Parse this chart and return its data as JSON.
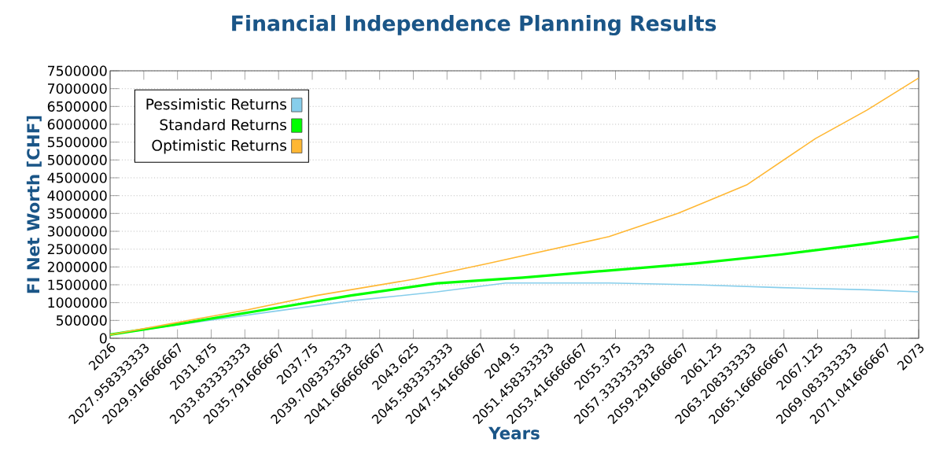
{
  "chart_data": {
    "type": "line",
    "title": "Financial Independence Planning Results",
    "xlabel": "Years",
    "ylabel": "FI Net Worth [CHF]",
    "xlim": [
      2026,
      2073
    ],
    "xticks": [
      2026,
      {
        "value": 2027.958333333,
        "label": "2027.958333333"
      },
      {
        "value": 2029.916666667,
        "label": "2029.916666667"
      },
      {
        "value": 2031.875,
        "label": "2031.875"
      },
      {
        "value": 2033.833333333,
        "label": "2033.833333333"
      },
      {
        "value": 2035.791666667,
        "label": "2035.791666667"
      },
      {
        "value": 2037.75,
        "label": "2037.75"
      },
      {
        "value": 2039.708333333,
        "label": "2039.708333333"
      },
      {
        "value": 2041.666666667,
        "label": "2041.666666667"
      },
      {
        "value": 2043.625,
        "label": "2043.625"
      },
      {
        "value": 2045.583333333,
        "label": "2045.583333333"
      },
      {
        "value": 2047.541666667,
        "label": "2047.541666667"
      },
      {
        "value": 2049.5,
        "label": "2049.5"
      },
      {
        "value": 2051.458333333,
        "label": "2051.458333333"
      },
      {
        "value": 2053.416666667,
        "label": "2053.416666667"
      },
      {
        "value": 2055.375,
        "label": "2055.375"
      },
      {
        "value": 2057.333333333,
        "label": "2057.333333333"
      },
      {
        "value": 2059.291666667,
        "label": "2059.291666667"
      },
      {
        "value": 2061.25,
        "label": "2061.25"
      },
      {
        "value": 2063.208333333,
        "label": "2063.208333333"
      },
      {
        "value": 2065.166666667,
        "label": "2065.166666667"
      },
      {
        "value": 2067.125,
        "label": "2067.125"
      },
      {
        "value": 2069.083333333,
        "label": "2069.083333333"
      },
      {
        "value": 2071.041666667,
        "label": "2071.041666667"
      },
      2073
    ],
    "ylim": [
      0,
      7500000
    ],
    "yticks": [
      0,
      500000,
      1000000,
      1500000,
      2000000,
      2500000,
      3000000,
      3500000,
      4000000,
      4500000,
      5000000,
      5500000,
      6000000,
      6500000,
      7000000,
      7500000
    ],
    "grid": "y",
    "legend": "top left",
    "marker": "none",
    "line_style": "solid",
    "series": [
      {
        "name": "Pessimistic Returns",
        "color": "#87ceeb",
        "x": [
          2026,
          2030,
          2035,
          2040,
          2045,
          2049,
          2055,
          2060,
          2065,
          2070,
          2073
        ],
        "values": [
          100000,
          380000,
          720000,
          1050000,
          1300000,
          1550000,
          1550000,
          1500000,
          1420000,
          1360000,
          1300000
        ]
      },
      {
        "name": "Standard Returns",
        "color": "#00ff00",
        "x": [
          2026,
          2030,
          2035,
          2040,
          2045,
          2050,
          2055,
          2060,
          2065,
          2070,
          2073
        ],
        "values": [
          100000,
          400000,
          800000,
          1200000,
          1540000,
          1700000,
          1900000,
          2100000,
          2350000,
          2650000,
          2850000
        ]
      },
      {
        "name": "Optimistic Returns",
        "color": "#ffb733",
        "x": [
          2026,
          2030,
          2034,
          2038,
          2043.7,
          2048,
          2055,
          2059,
          2063,
          2067,
          2070,
          2073
        ],
        "values": [
          100000,
          450000,
          800000,
          1200000,
          1660000,
          2100000,
          2850000,
          3500000,
          4300000,
          5600000,
          6400000,
          7300000
        ]
      }
    ]
  }
}
